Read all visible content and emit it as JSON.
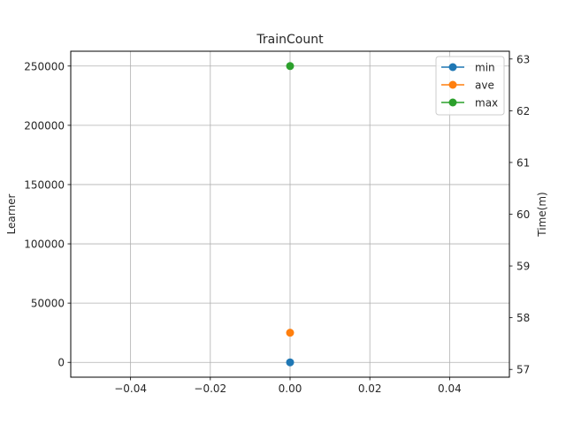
{
  "chart_data": {
    "type": "line",
    "title": "TrainCount",
    "ylabel": "Learner",
    "y2label": "Time(m)",
    "xlabel": "",
    "x": [
      0.0
    ],
    "xlim": [
      -0.055,
      0.055
    ],
    "ylim": [
      -12500,
      262500
    ],
    "y2lim": [
      56.85,
      63.15
    ],
    "xticks": [
      -0.04,
      -0.02,
      0.0,
      0.02,
      0.04
    ],
    "xtick_labels": [
      "−0.04",
      "−0.02",
      "0.00",
      "0.02",
      "0.04"
    ],
    "yticks": [
      0,
      50000,
      100000,
      150000,
      200000,
      250000
    ],
    "ytick_labels": [
      "0",
      "50000",
      "100000",
      "150000",
      "200000",
      "250000"
    ],
    "y2ticks": [
      57,
      58,
      59,
      60,
      61,
      62,
      63
    ],
    "y2tick_labels": [
      "57",
      "58",
      "59",
      "60",
      "61",
      "62",
      "63"
    ],
    "grid": true,
    "legend_position": "top-right",
    "series": [
      {
        "name": "min",
        "values": [
          0
        ],
        "color": "#1f77b4"
      },
      {
        "name": "ave",
        "values": [
          25000
        ],
        "color": "#ff7f0e"
      },
      {
        "name": "max",
        "values": [
          250000
        ],
        "color": "#2ca02c"
      }
    ]
  }
}
